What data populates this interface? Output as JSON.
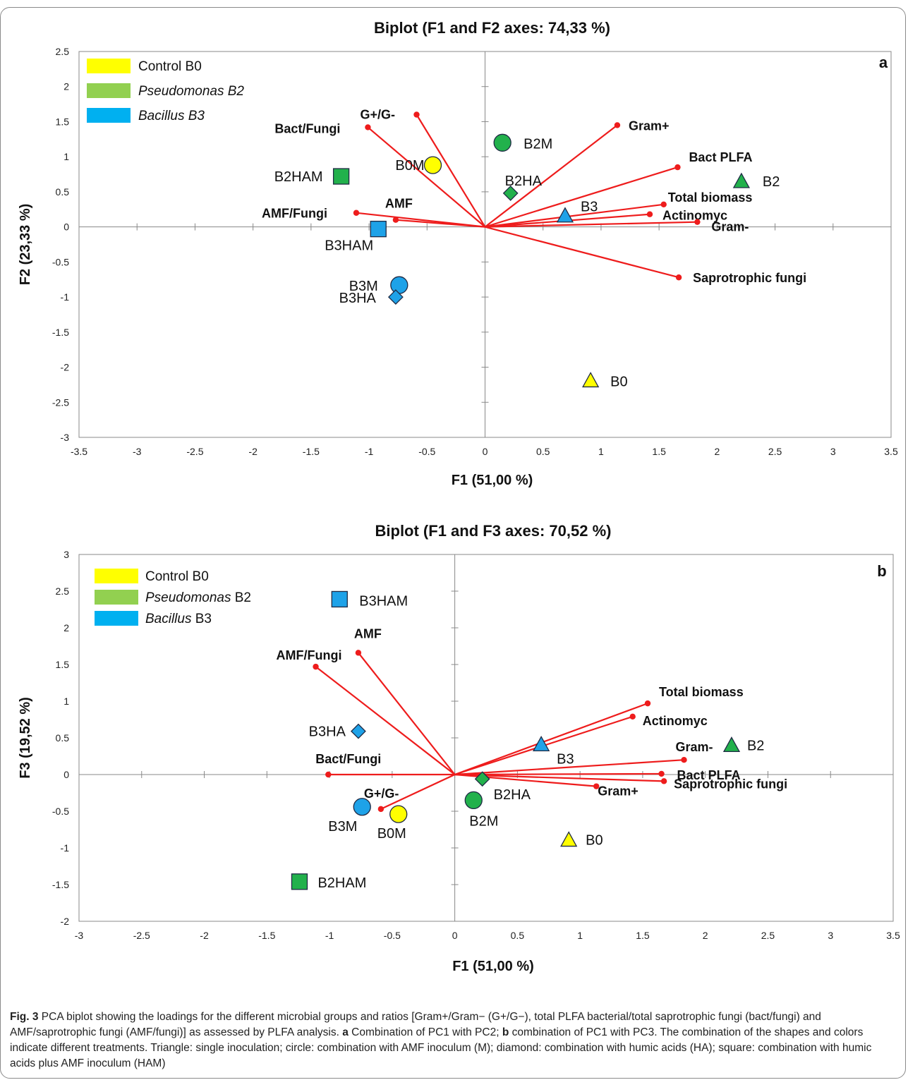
{
  "chart_data": [
    {
      "type": "scatter",
      "panel_label": "a",
      "title": "Biplot (F1 and F2 axes: 74,33 %)",
      "xlabel": "F1 (51,00 %)",
      "ylabel": "F2 (23,33 %)",
      "xlim": [
        -3.5,
        3.5
      ],
      "ylim": [
        -3,
        2.5
      ],
      "xticks": [
        -3.5,
        -3,
        -2.5,
        -2,
        -1.5,
        -1,
        -0.5,
        0,
        0.5,
        1,
        1.5,
        2,
        2.5,
        3,
        3.5
      ],
      "yticks": [
        -3,
        -2.5,
        -2,
        -1.5,
        -1,
        -0.5,
        0,
        0.5,
        1,
        1.5,
        2,
        2.5
      ],
      "grid": false,
      "legend_position": "top-left",
      "legend": [
        {
          "label": "Control B0",
          "italic": "",
          "color": "#ffff00"
        },
        {
          "label": " B2",
          "italic": "Pseudomonas B2",
          "color": "#92d050"
        },
        {
          "label": " B3",
          "italic": "Bacillus B3",
          "color": "#00b0f0"
        }
      ],
      "loadings": [
        {
          "name": "Gram+",
          "x": 1.14,
          "y": 1.45
        },
        {
          "name": "Bact PLFA",
          "x": 1.66,
          "y": 0.85
        },
        {
          "name": "Total biomass",
          "x": 1.54,
          "y": 0.32
        },
        {
          "name": "Actinomyc",
          "x": 1.42,
          "y": 0.18
        },
        {
          "name": "Gram-",
          "x": 1.83,
          "y": 0.07
        },
        {
          "name": "Saprotrophic fungi",
          "x": 1.67,
          "y": -0.72
        },
        {
          "name": "G+/G-",
          "x": -0.59,
          "y": 1.6
        },
        {
          "name": "Bact/Fungi",
          "x": -1.01,
          "y": 1.42
        },
        {
          "name": "AMF/Fungi",
          "x": -1.11,
          "y": 0.2
        },
        {
          "name": "AMF",
          "x": -0.77,
          "y": 0.1
        }
      ],
      "points": [
        {
          "label": "B0",
          "x": 0.91,
          "y": -2.19,
          "shape": "triangle",
          "color": "#ffff00"
        },
        {
          "label": "B2",
          "x": 2.21,
          "y": 0.65,
          "shape": "triangle",
          "color": "#22b14c"
        },
        {
          "label": "B3",
          "x": 0.69,
          "y": 0.16,
          "shape": "triangle",
          "color": "#1ea2e8"
        },
        {
          "label": "B0M",
          "x": -0.45,
          "y": 0.88,
          "shape": "circle",
          "color": "#ffff00"
        },
        {
          "label": "B2M",
          "x": 0.15,
          "y": 1.2,
          "shape": "circle",
          "color": "#22b14c"
        },
        {
          "label": "B3M",
          "x": -0.74,
          "y": -0.83,
          "shape": "circle",
          "color": "#1ea2e8"
        },
        {
          "label": "B2HA",
          "x": 0.22,
          "y": 0.48,
          "shape": "diamond",
          "color": "#22b14c"
        },
        {
          "label": "B3HA",
          "x": -0.77,
          "y": -1.0,
          "shape": "diamond",
          "color": "#1ea2e8"
        },
        {
          "label": "B2HAM",
          "x": -1.24,
          "y": 0.72,
          "shape": "square",
          "color": "#22b14c"
        },
        {
          "label": "B3HAM",
          "x": -0.92,
          "y": -0.03,
          "shape": "square",
          "color": "#1ea2e8"
        }
      ]
    },
    {
      "type": "scatter",
      "panel_label": "b",
      "title": "Biplot (F1 and F3 axes: 70,52 %)",
      "xlabel": "F1 (51,00 %)",
      "ylabel": "F3 (19,52 %)",
      "xlim": [
        -3,
        3.5
      ],
      "ylim": [
        -2,
        3
      ],
      "xticks": [
        -3,
        -2.5,
        -2,
        -1.5,
        -1,
        -0.5,
        0,
        0.5,
        1,
        1.5,
        2,
        2.5,
        3,
        3.5
      ],
      "yticks": [
        -2,
        -1.5,
        -1,
        -0.5,
        0,
        0.5,
        1,
        1.5,
        2,
        2.5,
        3
      ],
      "grid": false,
      "legend_position": "top-left",
      "legend": [
        {
          "label": "Control B0",
          "italic": "",
          "color": "#ffff00"
        },
        {
          "label": " B2",
          "italic": "Pseudomonas",
          "color": "#92d050"
        },
        {
          "label": " B3",
          "italic": "Bacillus",
          "color": "#00b0f0"
        }
      ],
      "loadings": [
        {
          "name": "Total biomass",
          "x": 1.54,
          "y": 0.97
        },
        {
          "name": "Actinomyc",
          "x": 1.42,
          "y": 0.79
        },
        {
          "name": "Gram-",
          "x": 1.83,
          "y": 0.2
        },
        {
          "name": "Bact PLFA",
          "x": 1.65,
          "y": 0.01
        },
        {
          "name": "Saprotrophic fungi",
          "x": 1.67,
          "y": -0.09
        },
        {
          "name": "Gram+",
          "x": 1.13,
          "y": -0.16
        },
        {
          "name": "AMF",
          "x": -0.77,
          "y": 1.66
        },
        {
          "name": "AMF/Fungi",
          "x": -1.11,
          "y": 1.47
        },
        {
          "name": "Bact/Fungi",
          "x": -1.01,
          "y": 0.0
        },
        {
          "name": "G+/G-",
          "x": -0.59,
          "y": -0.47
        }
      ],
      "points": [
        {
          "label": "B0",
          "x": 0.91,
          "y": -0.89,
          "shape": "triangle",
          "color": "#ffff00"
        },
        {
          "label": "B2",
          "x": 2.21,
          "y": 0.4,
          "shape": "triangle",
          "color": "#22b14c"
        },
        {
          "label": "B3",
          "x": 0.69,
          "y": 0.41,
          "shape": "triangle",
          "color": "#1ea2e8"
        },
        {
          "label": "B0M",
          "x": -0.45,
          "y": -0.54,
          "shape": "circle",
          "color": "#ffff00"
        },
        {
          "label": "B2M",
          "x": 0.15,
          "y": -0.35,
          "shape": "circle",
          "color": "#22b14c"
        },
        {
          "label": "B3M",
          "x": -0.74,
          "y": -0.44,
          "shape": "circle",
          "color": "#1ea2e8"
        },
        {
          "label": "B2HA",
          "x": 0.22,
          "y": -0.06,
          "shape": "diamond",
          "color": "#22b14c"
        },
        {
          "label": "B3HA",
          "x": -0.77,
          "y": 0.59,
          "shape": "diamond",
          "color": "#1ea2e8"
        },
        {
          "label": "B2HAM",
          "x": -1.24,
          "y": -1.46,
          "shape": "square",
          "color": "#22b14c"
        },
        {
          "label": "B3HAM",
          "x": -0.92,
          "y": 2.39,
          "shape": "square",
          "color": "#1ea2e8"
        }
      ]
    }
  ],
  "caption": {
    "fig_label": "Fig. 3",
    "part1": "PCA biplot showing the loadings for the different microbial groups and ratios [Gram+/Gram− (G+/G−), total PLFA bacterial/total saprotrophic fungi (bact/fungi) and AMF/saprotrophic fungi (AMF/fungi)] as assessed by PLFA analysis. ",
    "a": "a",
    "part2": " Combination of PC1 with PC2; ",
    "b": "b",
    "part3": " combination of PC1 with PC3. The combination of the shapes and colors indicate different treatments. Triangle: single inoculation; circle: combination with AMF inoculum (M); diamond: combination with humic acids (HA); square: combination with humic acids plus AMF inoculum (HAM)"
  },
  "colors": {
    "loading": "#ee1c1c",
    "axis": "#888888"
  }
}
